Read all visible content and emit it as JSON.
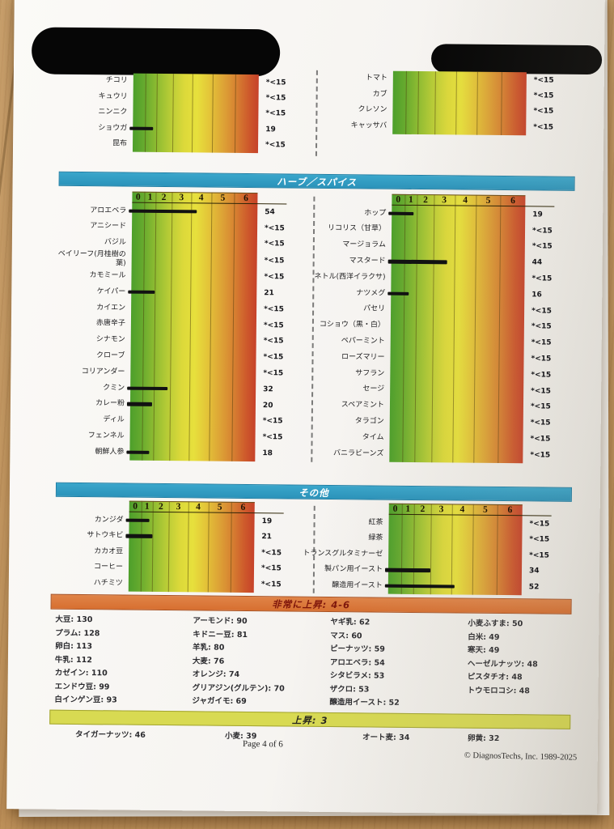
{
  "scale": {
    "ticks": [
      "0",
      "1",
      "2",
      "3",
      "4",
      "5",
      "6"
    ]
  },
  "colors": {
    "banner_blue": "#2f9cc3",
    "banner_orange": "#dc793b",
    "banner_yellow": "#d8da52",
    "gradient_green": "#4d9f2b",
    "gradient_yellow": "#e7e03c",
    "gradient_red": "#c6422a",
    "bar_black": "#121212"
  },
  "charts": {
    "top": {
      "left": {
        "rows": [
          {
            "label": "チコリ",
            "value": "*<15"
          },
          {
            "label": "キュウリ",
            "value": "*<15"
          },
          {
            "label": "ニンニク",
            "value": "*<15"
          },
          {
            "label": "ショウガ",
            "value": "19",
            "bar": 19
          },
          {
            "label": "昆布",
            "value": "*<15"
          }
        ]
      },
      "right": {
        "rows": [
          {
            "label": "トマト",
            "value": "*<15"
          },
          {
            "label": "カブ",
            "value": "*<15"
          },
          {
            "label": "クレソン",
            "value": "*<15"
          },
          {
            "label": "キャッサバ",
            "value": "*<15"
          }
        ]
      }
    },
    "herbs": {
      "title": "ハーブ／スパイス",
      "left": {
        "rows": [
          {
            "label": "アロエベラ",
            "value": "54",
            "bar": 54
          },
          {
            "label": "アニシード",
            "value": "*<15"
          },
          {
            "label": "バジル",
            "value": "*<15"
          },
          {
            "label": "ベイリーフ(月桂樹の葉)",
            "value": "*<15"
          },
          {
            "label": "カモミール",
            "value": "*<15"
          },
          {
            "label": "ケイパー",
            "value": "21",
            "bar": 21
          },
          {
            "label": "カイエン",
            "value": "*<15"
          },
          {
            "label": "赤唐辛子",
            "value": "*<15"
          },
          {
            "label": "シナモン",
            "value": "*<15"
          },
          {
            "label": "クローブ",
            "value": "*<15"
          },
          {
            "label": "コリアンダー",
            "value": "*<15"
          },
          {
            "label": "クミン",
            "value": "32",
            "bar": 32
          },
          {
            "label": "カレー粉",
            "value": "20",
            "bar": 20
          },
          {
            "label": "ディル",
            "value": "*<15"
          },
          {
            "label": "フェンネル",
            "value": "*<15"
          },
          {
            "label": "朝鮮人参",
            "value": "18",
            "bar": 18
          }
        ]
      },
      "right": {
        "rows": [
          {
            "label": "ホップ",
            "value": "19",
            "bar": 19
          },
          {
            "label": "リコリス（甘草）",
            "value": "*<15"
          },
          {
            "label": "マージョラム",
            "value": "*<15"
          },
          {
            "label": "マスタード",
            "value": "44",
            "bar": 44
          },
          {
            "label": "ネトル(西洋イラクサ)",
            "value": "*<15"
          },
          {
            "label": "ナツメグ",
            "value": "16",
            "bar": 16
          },
          {
            "label": "パセリ",
            "value": "*<15"
          },
          {
            "label": "コショウ（黒・白）",
            "value": "*<15"
          },
          {
            "label": "ペパーミント",
            "value": "*<15"
          },
          {
            "label": "ローズマリー",
            "value": "*<15"
          },
          {
            "label": "サフラン",
            "value": "*<15"
          },
          {
            "label": "セージ",
            "value": "*<15"
          },
          {
            "label": "スペアミント",
            "value": "*<15"
          },
          {
            "label": "タラゴン",
            "value": "*<15"
          },
          {
            "label": "タイム",
            "value": "*<15"
          },
          {
            "label": "バニラビーンズ",
            "value": "*<15"
          }
        ]
      }
    },
    "others": {
      "title": "その他",
      "left": {
        "rows": [
          {
            "label": "カンジダ",
            "value": "19",
            "bar": 19
          },
          {
            "label": "サトウキビ",
            "value": "21",
            "bar": 21
          },
          {
            "label": "カカオ豆",
            "value": "*<15"
          },
          {
            "label": "コーヒー",
            "value": "*<15"
          },
          {
            "label": "ハチミツ",
            "value": "*<15"
          }
        ]
      },
      "right": {
        "rows": [
          {
            "label": "紅茶",
            "value": "*<15"
          },
          {
            "label": "緑茶",
            "value": "*<15"
          },
          {
            "label": "トランスグルタミナーゼ",
            "value": "*<15"
          },
          {
            "label": "製パン用イースト",
            "value": "34",
            "bar": 34
          },
          {
            "label": "醸造用イースト",
            "value": "52",
            "bar": 52
          }
        ]
      }
    }
  },
  "very_elevated": {
    "title": "非常に上昇: 4-6",
    "columns": [
      [
        {
          "name": "大豆",
          "value": "130"
        },
        {
          "name": "プラム",
          "value": "128"
        },
        {
          "name": "卵白",
          "value": "113"
        },
        {
          "name": "牛乳",
          "value": "112"
        },
        {
          "name": "カゼイン",
          "value": "110"
        },
        {
          "name": "エンドウ豆",
          "value": "99"
        },
        {
          "name": "白インゲン豆",
          "value": "93"
        }
      ],
      [
        {
          "name": "アーモンド",
          "value": "90"
        },
        {
          "name": "キドニー豆",
          "value": "81"
        },
        {
          "name": "羊乳",
          "value": "80"
        },
        {
          "name": "大麦",
          "value": "76"
        },
        {
          "name": "オレンジ",
          "value": "74"
        },
        {
          "name": "グリアジン(グルテン)",
          "value": "70"
        },
        {
          "name": "ジャガイモ",
          "value": "69"
        }
      ],
      [
        {
          "name": "ヤギ乳",
          "value": "62"
        },
        {
          "name": "マス",
          "value": "60"
        },
        {
          "name": "ピーナッツ",
          "value": "59"
        },
        {
          "name": "アロエベラ",
          "value": "54"
        },
        {
          "name": "シタビラメ",
          "value": "53"
        },
        {
          "name": "ザクロ",
          "value": "53"
        },
        {
          "name": "醸造用イースト",
          "value": "52"
        }
      ],
      [
        {
          "name": "小麦ふすま",
          "value": "50"
        },
        {
          "name": "白米",
          "value": "49"
        },
        {
          "name": "寒天",
          "value": "49"
        },
        {
          "name": "ヘーゼルナッツ",
          "value": "48"
        },
        {
          "name": "ピスタチオ",
          "value": "48"
        },
        {
          "name": "トウモロコシ",
          "value": "48"
        }
      ]
    ]
  },
  "elevated": {
    "title": "上昇: 3",
    "items": [
      {
        "name": "タイガーナッツ",
        "value": "46"
      },
      {
        "name": "小麦",
        "value": "39"
      },
      {
        "name": "オート麦",
        "value": "34"
      },
      {
        "name": "卵黄",
        "value": "32"
      }
    ]
  },
  "footer": {
    "page": "Page 4 of 6",
    "copyright": "© DiagnosTechs, Inc. 1989-2025"
  }
}
